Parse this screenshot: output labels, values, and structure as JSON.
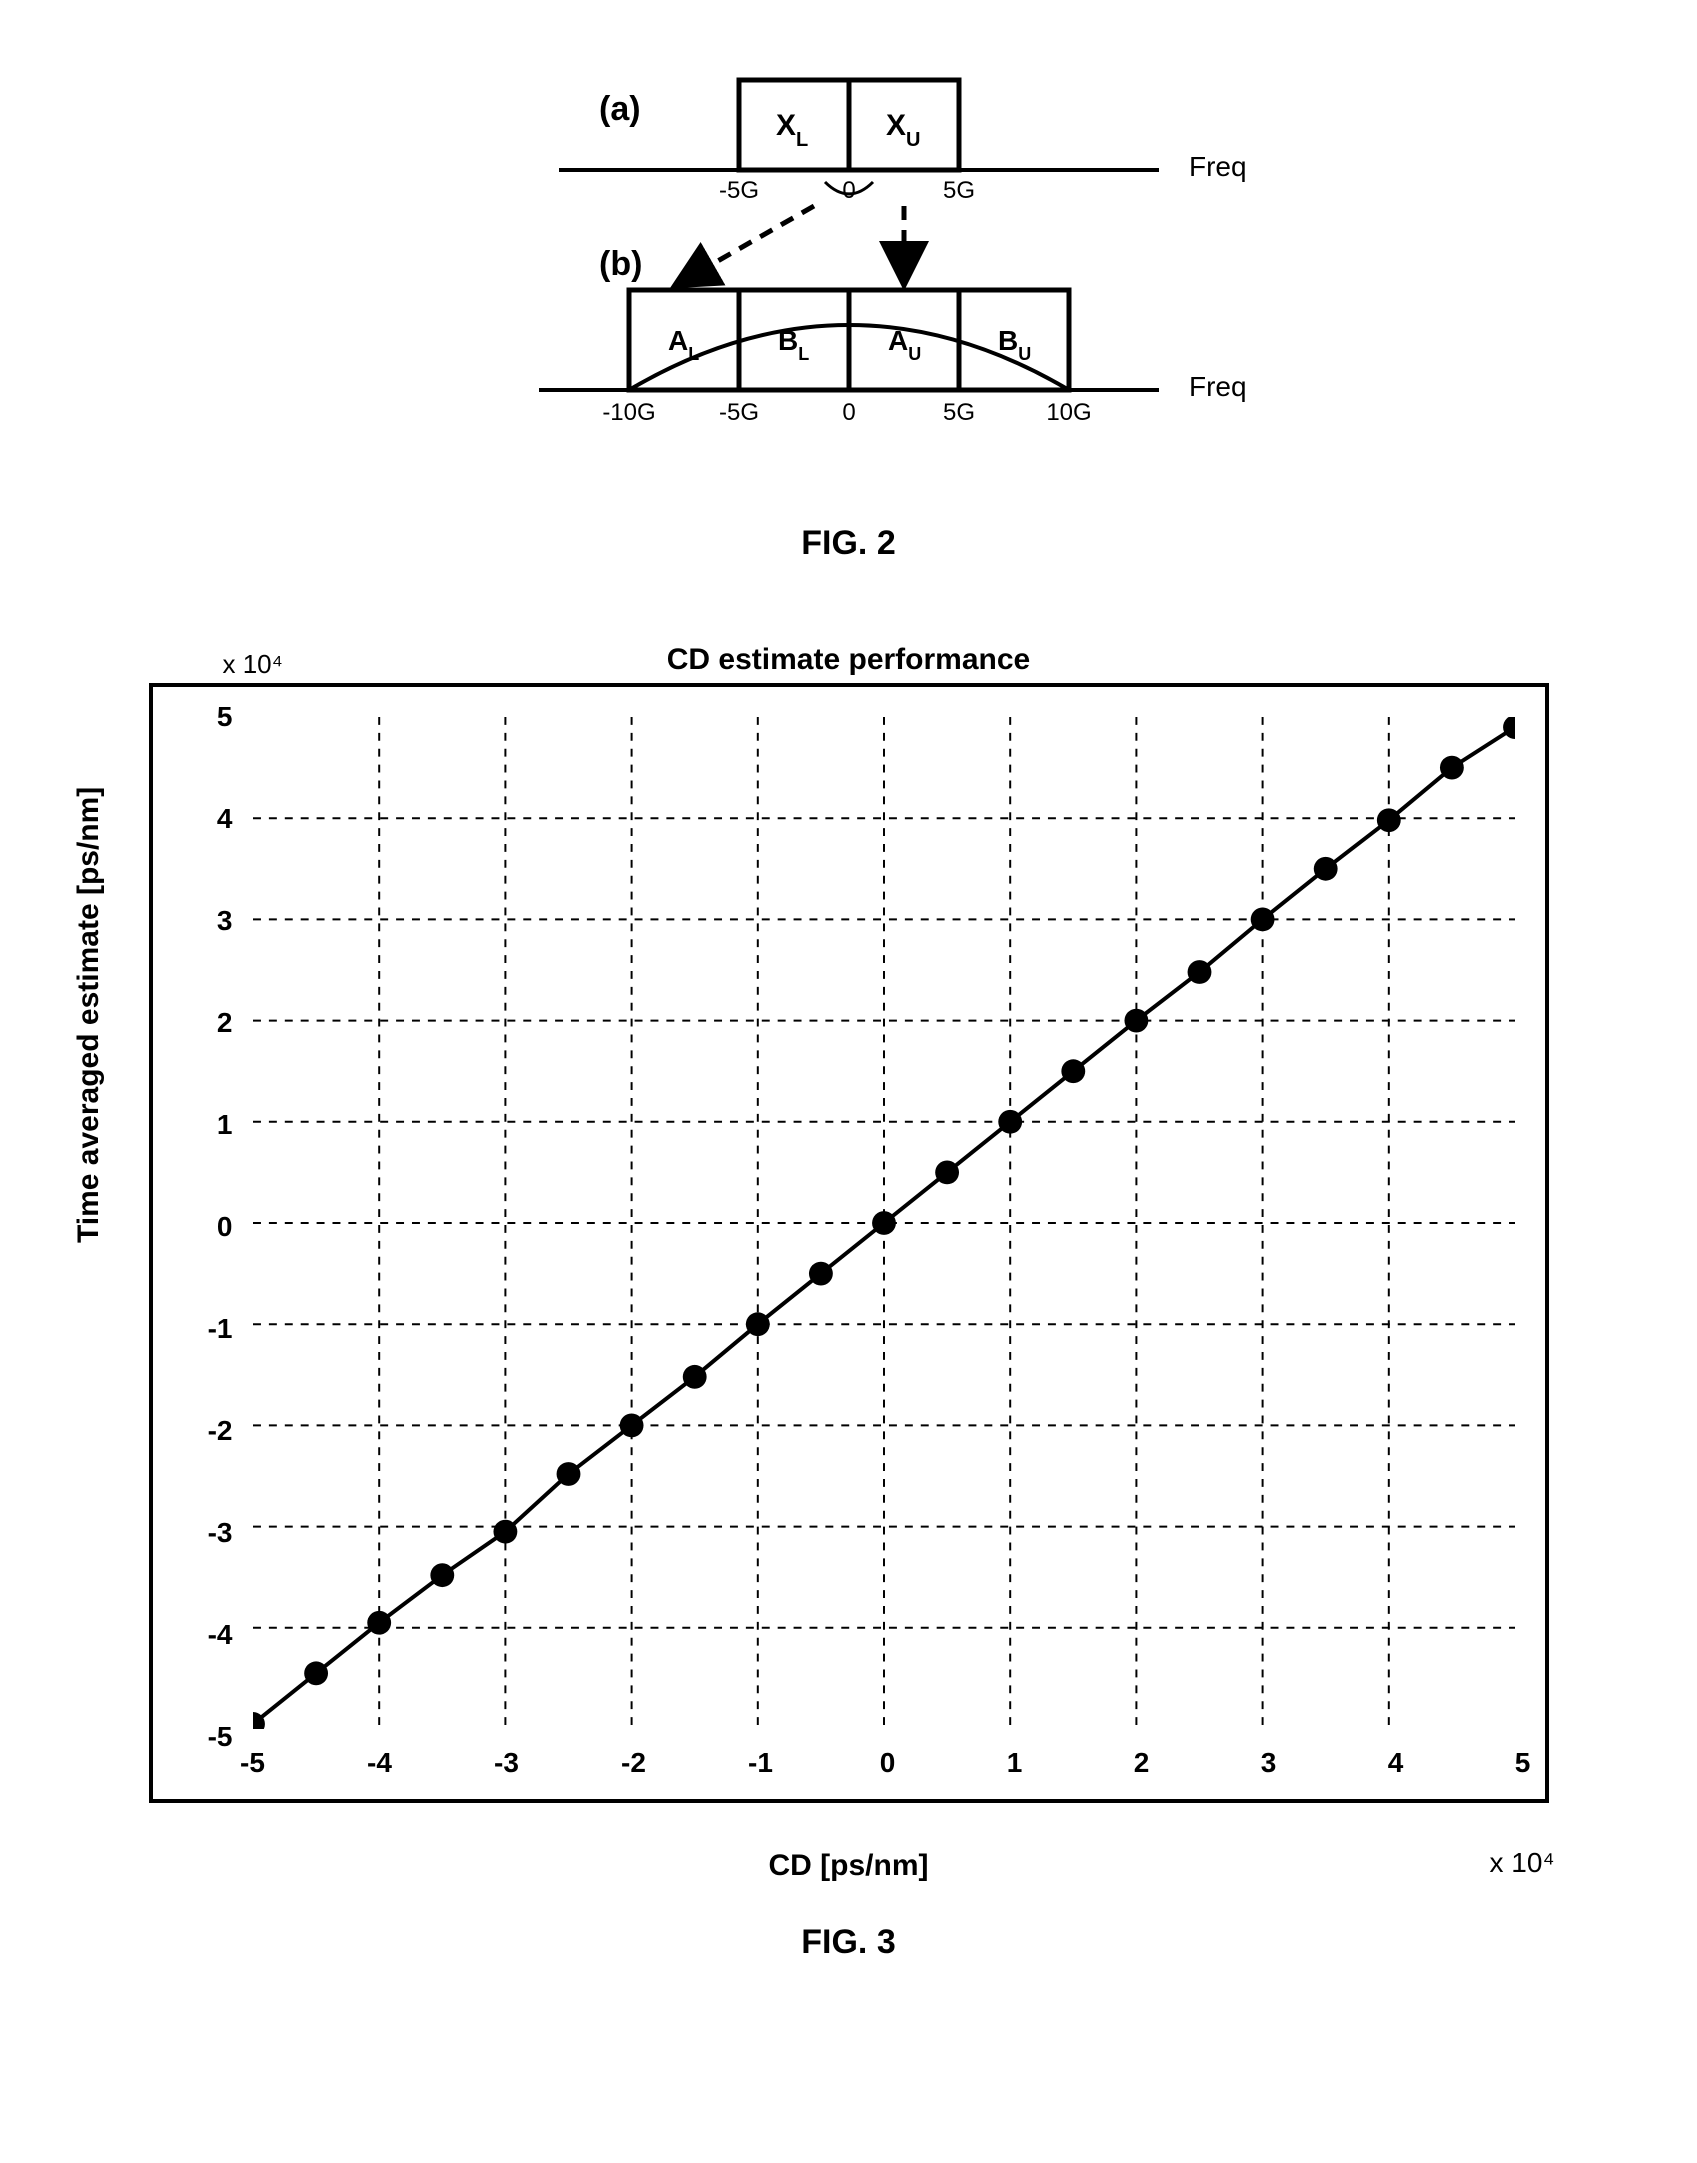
{
  "fig2": {
    "caption": "FIG. 2",
    "part_a_label": "(a)",
    "part_b_label": "(b)",
    "freq_label": "Freq",
    "a": {
      "boxes": [
        {
          "label": "X",
          "sub": "L",
          "x_ticks": [
            "-5G",
            "0"
          ]
        },
        {
          "label": "X",
          "sub": "U",
          "x_ticks": [
            "5G"
          ]
        }
      ],
      "tick_labels": [
        "-5G",
        "0",
        "5G"
      ]
    },
    "b": {
      "boxes": [
        {
          "label": "A",
          "sub": "L"
        },
        {
          "label": "B",
          "sub": "L"
        },
        {
          "label": "A",
          "sub": "U"
        },
        {
          "label": "B",
          "sub": "U"
        }
      ],
      "tick_labels": [
        "-10G",
        "-5G",
        "0",
        "5G",
        "10G"
      ]
    },
    "colors": {
      "stroke": "#000000",
      "background": "#ffffff"
    }
  },
  "fig3": {
    "caption": "FIG. 3",
    "type": "scatter-line",
    "title": "CD estimate performance",
    "xlabel": "CD [ps/nm]",
    "ylabel": "Time averaged estimate [ps/nm]",
    "x_exp": "x 10⁴",
    "y_exp": "x 10⁴",
    "xlim": [
      -5,
      5
    ],
    "ylim": [
      -5,
      5
    ],
    "xticks": [
      -5,
      -4,
      -3,
      -2,
      -1,
      0,
      1,
      2,
      3,
      4,
      5
    ],
    "yticks": [
      -5,
      -4,
      -3,
      -2,
      -1,
      0,
      1,
      2,
      3,
      4,
      5
    ],
    "grid_color": "#000000",
    "grid_dash": "8,8",
    "line_color": "#000000",
    "marker_color": "#000000",
    "marker_size": 12,
    "background_color": "#ffffff",
    "border_color": "#000000",
    "data": [
      {
        "x": -5.0,
        "y": -4.95
      },
      {
        "x": -4.5,
        "y": -4.45
      },
      {
        "x": -4.0,
        "y": -3.95
      },
      {
        "x": -3.5,
        "y": -3.48
      },
      {
        "x": -3.0,
        "y": -3.05
      },
      {
        "x": -2.5,
        "y": -2.48
      },
      {
        "x": -2.0,
        "y": -2.0
      },
      {
        "x": -1.5,
        "y": -1.52
      },
      {
        "x": -1.0,
        "y": -1.0
      },
      {
        "x": -0.5,
        "y": -0.5
      },
      {
        "x": 0.0,
        "y": 0.0
      },
      {
        "x": 0.5,
        "y": 0.5
      },
      {
        "x": 1.0,
        "y": 1.0
      },
      {
        "x": 1.5,
        "y": 1.5
      },
      {
        "x": 2.0,
        "y": 2.0
      },
      {
        "x": 2.5,
        "y": 2.48
      },
      {
        "x": 3.0,
        "y": 3.0
      },
      {
        "x": 3.5,
        "y": 3.5
      },
      {
        "x": 4.0,
        "y": 3.98
      },
      {
        "x": 4.5,
        "y": 4.5
      },
      {
        "x": 5.0,
        "y": 4.9
      }
    ]
  }
}
